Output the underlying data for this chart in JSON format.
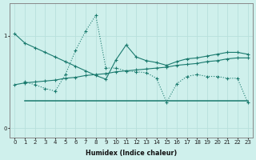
{
  "xlabel": "Humidex (Indice chaleur)",
  "bg_color": "#cff0ec",
  "grid_color": "#b8e0dc",
  "line_color": "#1a7a6e",
  "xlim": [
    -0.5,
    23.5
  ],
  "ylim": [
    -0.1,
    1.35
  ],
  "yticks": [
    0,
    1
  ],
  "xticks": [
    0,
    1,
    2,
    3,
    4,
    5,
    6,
    7,
    8,
    9,
    10,
    11,
    12,
    13,
    14,
    15,
    16,
    17,
    18,
    19,
    20,
    21,
    22,
    23
  ],
  "line1_x": [
    0,
    1,
    2,
    3,
    4,
    5,
    6,
    7,
    8,
    9,
    10,
    11,
    12,
    13,
    14,
    15,
    16,
    17,
    18,
    19,
    20,
    21,
    22,
    23
  ],
  "line1_y": [
    1.02,
    0.92,
    0.87,
    0.82,
    0.77,
    0.72,
    0.67,
    0.62,
    0.57,
    0.53,
    0.74,
    0.9,
    0.77,
    0.73,
    0.71,
    0.68,
    0.72,
    0.75,
    0.76,
    0.78,
    0.8,
    0.82,
    0.82,
    0.8
  ],
  "line2_x": [
    1,
    2,
    3,
    4,
    5,
    6,
    7,
    8,
    9,
    10,
    11,
    12,
    13,
    14,
    15,
    16,
    17,
    18,
    19,
    20,
    21,
    22,
    23
  ],
  "line2_y": [
    0.5,
    0.47,
    0.43,
    0.4,
    0.58,
    0.84,
    1.05,
    1.22,
    0.65,
    0.65,
    0.62,
    0.61,
    0.6,
    0.54,
    0.28,
    0.48,
    0.56,
    0.58,
    0.56,
    0.56,
    0.54,
    0.54,
    0.28
  ],
  "line3_x": [
    0,
    1,
    2,
    3,
    4,
    5,
    6,
    7,
    8,
    9,
    10,
    11,
    12,
    13,
    14,
    15,
    16,
    17,
    18,
    19,
    20,
    21,
    22,
    23
  ],
  "line3_y": [
    0.47,
    0.49,
    0.5,
    0.51,
    0.52,
    0.54,
    0.55,
    0.57,
    0.58,
    0.59,
    0.61,
    0.62,
    0.63,
    0.64,
    0.65,
    0.66,
    0.68,
    0.69,
    0.7,
    0.72,
    0.73,
    0.75,
    0.76,
    0.76
  ],
  "line4_x": [
    1,
    23
  ],
  "line4_y": [
    0.3,
    0.3
  ]
}
